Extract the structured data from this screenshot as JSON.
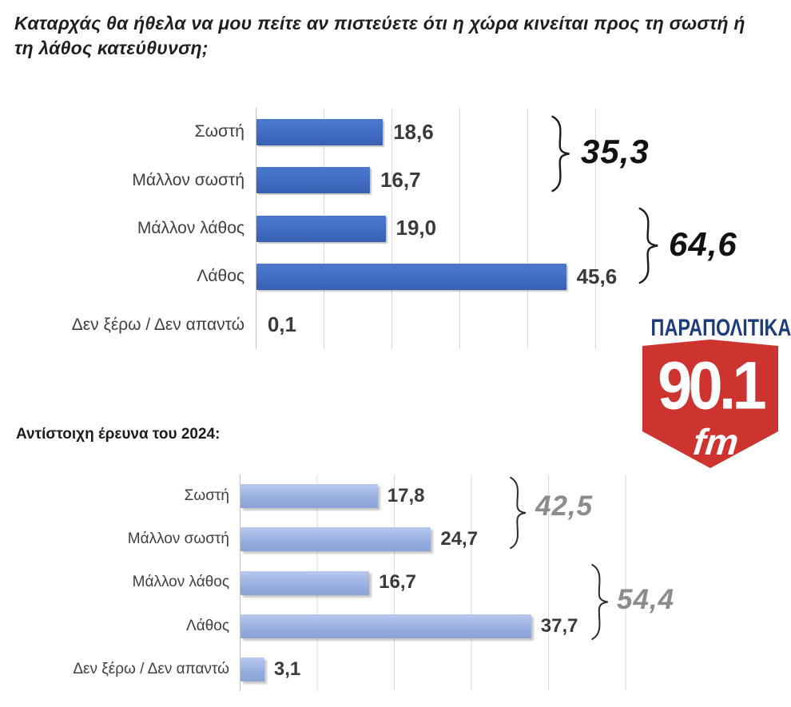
{
  "page": {
    "question_title": "Καταρχάς θα ήθελα να μου πείτε αν πιστεύετε ότι η χώρα κινείται προς τη σωστή ή\nτη λάθος κατεύθυνση;",
    "section2_label": "Αντίστοιχη έρευνα του 2024:"
  },
  "logo": {
    "brand": "ΠΑΡΑΠΟΛΙΤΙΚΑ",
    "frequency": "90.1",
    "band": "fm",
    "colors": {
      "brand_blue": "#1e3c7c",
      "shield_red": "#cd332f",
      "text_white": "#ffffff"
    }
  },
  "chart_data": [
    {
      "type": "bar",
      "orientation": "horizontal",
      "title": "Καταρχάς θα ήθελα να μου πείτε αν πιστεύετε ότι η χώρα κινείται προς τη σωστή ή τη λάθος κατεύθυνση;",
      "categories": [
        "Σωστή",
        "Μάλλον σωστή",
        "Μάλλον λάθος",
        "Λάθος",
        "Δεν ξέρω / Δεν απαντώ"
      ],
      "values": [
        18.6,
        16.7,
        19.0,
        45.6,
        0.1
      ],
      "value_labels": [
        "18,6",
        "16,7",
        "19,0",
        "45,6",
        "0,1"
      ],
      "groups": [
        {
          "label": "35,3",
          "value": 35.3,
          "rows": [
            0,
            1
          ]
        },
        {
          "label": "64,6",
          "value": 64.6,
          "rows": [
            2,
            3
          ]
        }
      ],
      "xlim": [
        0,
        50
      ],
      "gridline_step": 10,
      "grid": true,
      "bar_color": "#4472c4",
      "legend": "none"
    },
    {
      "type": "bar",
      "orientation": "horizontal",
      "title": "Αντίστοιχη έρευνα του 2024:",
      "categories": [
        "Σωστή",
        "Μάλλον σωστή",
        "Μάλλον λάθος",
        "Λάθος",
        "Δεν ξέρω / Δεν απαντώ"
      ],
      "values": [
        17.8,
        24.7,
        16.7,
        37.7,
        3.1
      ],
      "value_labels": [
        "17,8",
        "24,7",
        "16,7",
        "37,7",
        "3,1"
      ],
      "groups": [
        {
          "label": "42,5",
          "value": 42.5,
          "rows": [
            0,
            1
          ]
        },
        {
          "label": "54,4",
          "value": 54.4,
          "rows": [
            2,
            3
          ]
        }
      ],
      "xlim": [
        0,
        50
      ],
      "gridline_step": 10,
      "grid": true,
      "bar_color": "#8faadc",
      "legend": "none"
    }
  ]
}
